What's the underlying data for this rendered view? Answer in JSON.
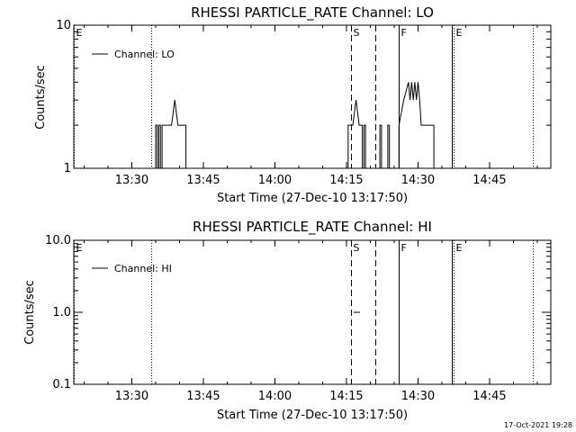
{
  "footer": {
    "timestamp": "17-Oct-2021 19:28"
  },
  "chart_data": [
    {
      "type": "line",
      "title": "RHESSI PARTICLE_RATE Channel: LO",
      "xlabel": "Start Time (27-Dec-10 13:17:50)",
      "ylabel": "Counts/sec",
      "yscale": "log",
      "ylim": [
        1,
        10
      ],
      "xlim": [
        "13:17:50",
        "14:57:50"
      ],
      "y_tick_labels": [
        {
          "value": 1,
          "label": "1"
        },
        {
          "value": 10,
          "label": "10"
        }
      ],
      "x_tick_labels": [
        {
          "value": "13:30",
          "label": "13:30"
        },
        {
          "value": "13:45",
          "label": "13:45"
        },
        {
          "value": "14:00",
          "label": "14:00"
        },
        {
          "value": "14:15",
          "label": "14:15"
        },
        {
          "value": "14:30",
          "label": "14:30"
        },
        {
          "value": "14:45",
          "label": "14:45"
        }
      ],
      "legend": {
        "label": "Channel: LO",
        "position": "top-left"
      },
      "event_lines": [
        {
          "time": "13:17:50",
          "style": "dotted",
          "label": "E"
        },
        {
          "time": "13:34:00",
          "style": "dotted",
          "label": ""
        },
        {
          "time": "14:16:00",
          "style": "dashed",
          "label": "S"
        },
        {
          "time": "14:21:00",
          "style": "dashed",
          "label": ""
        },
        {
          "time": "14:26:00",
          "style": "solid",
          "label": "F"
        },
        {
          "time": "14:37:00",
          "style": "solid",
          "label": ""
        },
        {
          "time": "14:37:30",
          "style": "dotted",
          "label": "E"
        },
        {
          "time": "14:54:00",
          "style": "dotted",
          "label": ""
        }
      ],
      "series": [
        {
          "segments": [
            [
              [
                "13:35:00",
                1
              ],
              [
                "13:35:00",
                2
              ],
              [
                "13:35:20",
                2
              ],
              [
                "13:35:20",
                1
              ],
              [
                "13:35:40",
                1
              ],
              [
                "13:35:40",
                2
              ],
              [
                "13:36:00",
                2
              ],
              [
                "13:36:00",
                1
              ],
              [
                "13:36:20",
                1
              ],
              [
                "13:36:20",
                2
              ],
              [
                "13:38:20",
                2
              ],
              [
                "13:39:00",
                3
              ],
              [
                "13:39:40",
                2
              ],
              [
                "13:41:20",
                2
              ],
              [
                "13:41:20",
                1
              ]
            ],
            [
              [
                "14:15:20",
                1
              ],
              [
                "14:15:20",
                2
              ],
              [
                "14:16:20",
                2
              ],
              [
                "14:17:00",
                3
              ],
              [
                "14:17:40",
                2
              ],
              [
                "14:18:20",
                2
              ],
              [
                "14:18:20",
                1
              ],
              [
                "14:18:40",
                1
              ],
              [
                "14:18:40",
                2
              ],
              [
                "14:19:00",
                2
              ],
              [
                "14:19:00",
                1
              ]
            ],
            [
              [
                "14:22:00",
                1
              ],
              [
                "14:22:00",
                2
              ],
              [
                "14:22:20",
                2
              ],
              [
                "14:22:20",
                1
              ]
            ],
            [
              [
                "14:23:40",
                1
              ],
              [
                "14:23:40",
                2
              ],
              [
                "14:24:00",
                2
              ],
              [
                "14:24:00",
                1
              ]
            ],
            [
              [
                "14:26:00",
                1
              ],
              [
                "14:26:00",
                2
              ],
              [
                "14:27:00",
                3
              ],
              [
                "14:28:00",
                4
              ],
              [
                "14:28:20",
                3
              ],
              [
                "14:28:40",
                4
              ],
              [
                "14:29:00",
                3
              ],
              [
                "14:29:20",
                4
              ],
              [
                "14:29:40",
                3
              ],
              [
                "14:30:00",
                4
              ],
              [
                "14:30:20",
                3
              ],
              [
                "14:30:40",
                2
              ],
              [
                "14:33:20",
                2
              ],
              [
                "14:33:20",
                1
              ]
            ]
          ]
        }
      ]
    },
    {
      "type": "line",
      "title": "RHESSI PARTICLE_RATE Channel: HI",
      "xlabel": "Start Time (27-Dec-10 13:17:50)",
      "ylabel": "Counts/sec",
      "yscale": "log",
      "ylim": [
        0.1,
        10
      ],
      "xlim": [
        "13:17:50",
        "14:57:50"
      ],
      "y_tick_labels": [
        {
          "value": 0.1,
          "label": "0.1"
        },
        {
          "value": 1,
          "label": "1.0"
        },
        {
          "value": 10,
          "label": "10.0"
        }
      ],
      "x_tick_labels": [
        {
          "value": "13:30",
          "label": "13:30"
        },
        {
          "value": "13:45",
          "label": "13:45"
        },
        {
          "value": "14:00",
          "label": "14:00"
        },
        {
          "value": "14:15",
          "label": "14:15"
        },
        {
          "value": "14:30",
          "label": "14:30"
        },
        {
          "value": "14:45",
          "label": "14:45"
        }
      ],
      "legend": {
        "label": "Channel: HI",
        "position": "top-left"
      },
      "event_lines": [
        {
          "time": "13:17:50",
          "style": "dotted",
          "label": "E"
        },
        {
          "time": "13:34:00",
          "style": "dotted",
          "label": ""
        },
        {
          "time": "14:16:00",
          "style": "dashed",
          "label": "S"
        },
        {
          "time": "14:21:00",
          "style": "dashed",
          "label": ""
        },
        {
          "time": "14:26:00",
          "style": "solid",
          "label": "F"
        },
        {
          "time": "14:37:00",
          "style": "solid",
          "label": ""
        },
        {
          "time": "14:37:30",
          "style": "dotted",
          "label": "E"
        },
        {
          "time": "14:54:00",
          "style": "dotted",
          "label": ""
        }
      ],
      "series": [
        {
          "segments": [
            [
              [
                "14:16:30",
                1
              ],
              [
                "14:17:50",
                1
              ]
            ]
          ]
        }
      ]
    }
  ]
}
